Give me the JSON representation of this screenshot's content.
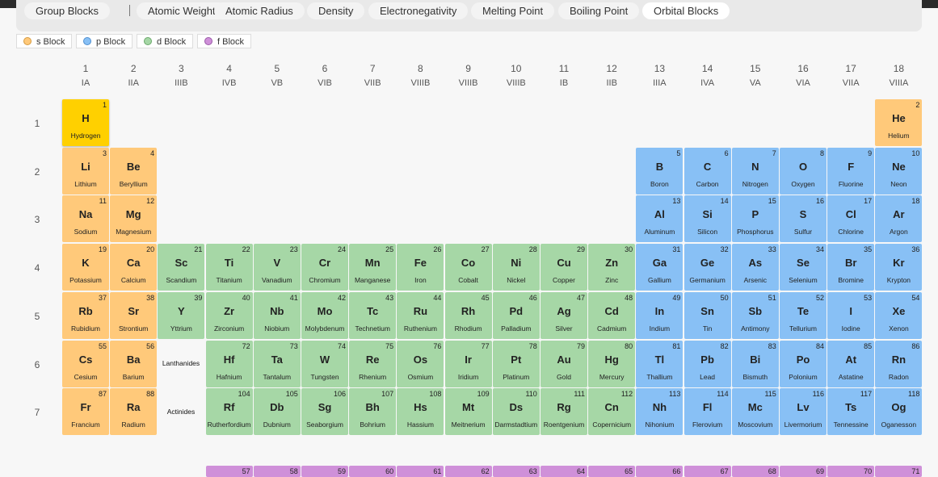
{
  "tabs": [
    {
      "label": "Group Blocks",
      "active": false
    },
    {
      "label": "Atomic Weight",
      "active": false
    },
    {
      "label": "Atomic Radius",
      "active": false
    },
    {
      "label": "Density",
      "active": false
    },
    {
      "label": "Electronegativity",
      "active": false
    },
    {
      "label": "Melting Point",
      "active": false
    },
    {
      "label": "Boiling Point",
      "active": false
    },
    {
      "label": "Orbital Blocks",
      "active": true
    }
  ],
  "legend": [
    {
      "label": "s Block",
      "color": "#ffc97a",
      "border": "#d59a3f"
    },
    {
      "label": "p Block",
      "color": "#88c0f5",
      "border": "#4f8fd0"
    },
    {
      "label": "d Block",
      "color": "#a6d7a6",
      "border": "#6aa86a"
    },
    {
      "label": "f Block",
      "color": "#cf90d9",
      "border": "#9a5aa8"
    }
  ],
  "groups": [
    {
      "num": "1",
      "rom": "IA"
    },
    {
      "num": "2",
      "rom": "IIA"
    },
    {
      "num": "3",
      "rom": "IIIB"
    },
    {
      "num": "4",
      "rom": "IVB"
    },
    {
      "num": "5",
      "rom": "VB"
    },
    {
      "num": "6",
      "rom": "VIB"
    },
    {
      "num": "7",
      "rom": "VIIB"
    },
    {
      "num": "8",
      "rom": "VIIIB"
    },
    {
      "num": "9",
      "rom": "VIIIB"
    },
    {
      "num": "10",
      "rom": "VIIIB"
    },
    {
      "num": "11",
      "rom": "IB"
    },
    {
      "num": "12",
      "rom": "IIB"
    },
    {
      "num": "13",
      "rom": "IIIA"
    },
    {
      "num": "14",
      "rom": "IVA"
    },
    {
      "num": "15",
      "rom": "VA"
    },
    {
      "num": "16",
      "rom": "VIA"
    },
    {
      "num": "17",
      "rom": "VIIA"
    },
    {
      "num": "18",
      "rom": "VIIIA"
    }
  ],
  "periods": [
    "1",
    "2",
    "3",
    "4",
    "5",
    "6",
    "7"
  ],
  "series_labels": {
    "lanthanides": "Lanthanides",
    "actinides": "Actinides"
  },
  "elements": [
    {
      "n": 1,
      "s": "H",
      "name": "Hydrogen",
      "g": 1,
      "p": 1,
      "b": "s",
      "hl": true
    },
    {
      "n": 2,
      "s": "He",
      "name": "Helium",
      "g": 18,
      "p": 1,
      "b": "s"
    },
    {
      "n": 3,
      "s": "Li",
      "name": "Lithium",
      "g": 1,
      "p": 2,
      "b": "s"
    },
    {
      "n": 4,
      "s": "Be",
      "name": "Beryllium",
      "g": 2,
      "p": 2,
      "b": "s"
    },
    {
      "n": 5,
      "s": "B",
      "name": "Boron",
      "g": 13,
      "p": 2,
      "b": "p"
    },
    {
      "n": 6,
      "s": "C",
      "name": "Carbon",
      "g": 14,
      "p": 2,
      "b": "p"
    },
    {
      "n": 7,
      "s": "N",
      "name": "Nitrogen",
      "g": 15,
      "p": 2,
      "b": "p"
    },
    {
      "n": 8,
      "s": "O",
      "name": "Oxygen",
      "g": 16,
      "p": 2,
      "b": "p"
    },
    {
      "n": 9,
      "s": "F",
      "name": "Fluorine",
      "g": 17,
      "p": 2,
      "b": "p"
    },
    {
      "n": 10,
      "s": "Ne",
      "name": "Neon",
      "g": 18,
      "p": 2,
      "b": "p"
    },
    {
      "n": 11,
      "s": "Na",
      "name": "Sodium",
      "g": 1,
      "p": 3,
      "b": "s"
    },
    {
      "n": 12,
      "s": "Mg",
      "name": "Magnesium",
      "g": 2,
      "p": 3,
      "b": "s"
    },
    {
      "n": 13,
      "s": "Al",
      "name": "Aluminum",
      "g": 13,
      "p": 3,
      "b": "p"
    },
    {
      "n": 14,
      "s": "Si",
      "name": "Silicon",
      "g": 14,
      "p": 3,
      "b": "p"
    },
    {
      "n": 15,
      "s": "P",
      "name": "Phosphorus",
      "g": 15,
      "p": 3,
      "b": "p"
    },
    {
      "n": 16,
      "s": "S",
      "name": "Sulfur",
      "g": 16,
      "p": 3,
      "b": "p"
    },
    {
      "n": 17,
      "s": "Cl",
      "name": "Chlorine",
      "g": 17,
      "p": 3,
      "b": "p"
    },
    {
      "n": 18,
      "s": "Ar",
      "name": "Argon",
      "g": 18,
      "p": 3,
      "b": "p"
    },
    {
      "n": 19,
      "s": "K",
      "name": "Potassium",
      "g": 1,
      "p": 4,
      "b": "s"
    },
    {
      "n": 20,
      "s": "Ca",
      "name": "Calcium",
      "g": 2,
      "p": 4,
      "b": "s"
    },
    {
      "n": 21,
      "s": "Sc",
      "name": "Scandium",
      "g": 3,
      "p": 4,
      "b": "d"
    },
    {
      "n": 22,
      "s": "Ti",
      "name": "Titanium",
      "g": 4,
      "p": 4,
      "b": "d"
    },
    {
      "n": 23,
      "s": "V",
      "name": "Vanadium",
      "g": 5,
      "p": 4,
      "b": "d"
    },
    {
      "n": 24,
      "s": "Cr",
      "name": "Chromium",
      "g": 6,
      "p": 4,
      "b": "d"
    },
    {
      "n": 25,
      "s": "Mn",
      "name": "Manganese",
      "g": 7,
      "p": 4,
      "b": "d"
    },
    {
      "n": 26,
      "s": "Fe",
      "name": "Iron",
      "g": 8,
      "p": 4,
      "b": "d"
    },
    {
      "n": 27,
      "s": "Co",
      "name": "Cobalt",
      "g": 9,
      "p": 4,
      "b": "d"
    },
    {
      "n": 28,
      "s": "Ni",
      "name": "Nickel",
      "g": 10,
      "p": 4,
      "b": "d"
    },
    {
      "n": 29,
      "s": "Cu",
      "name": "Copper",
      "g": 11,
      "p": 4,
      "b": "d"
    },
    {
      "n": 30,
      "s": "Zn",
      "name": "Zinc",
      "g": 12,
      "p": 4,
      "b": "d"
    },
    {
      "n": 31,
      "s": "Ga",
      "name": "Gallium",
      "g": 13,
      "p": 4,
      "b": "p"
    },
    {
      "n": 32,
      "s": "Ge",
      "name": "Germanium",
      "g": 14,
      "p": 4,
      "b": "p"
    },
    {
      "n": 33,
      "s": "As",
      "name": "Arsenic",
      "g": 15,
      "p": 4,
      "b": "p"
    },
    {
      "n": 34,
      "s": "Se",
      "name": "Selenium",
      "g": 16,
      "p": 4,
      "b": "p"
    },
    {
      "n": 35,
      "s": "Br",
      "name": "Bromine",
      "g": 17,
      "p": 4,
      "b": "p"
    },
    {
      "n": 36,
      "s": "Kr",
      "name": "Krypton",
      "g": 18,
      "p": 4,
      "b": "p"
    },
    {
      "n": 37,
      "s": "Rb",
      "name": "Rubidium",
      "g": 1,
      "p": 5,
      "b": "s"
    },
    {
      "n": 38,
      "s": "Sr",
      "name": "Strontium",
      "g": 2,
      "p": 5,
      "b": "s"
    },
    {
      "n": 39,
      "s": "Y",
      "name": "Yttrium",
      "g": 3,
      "p": 5,
      "b": "d"
    },
    {
      "n": 40,
      "s": "Zr",
      "name": "Zirconium",
      "g": 4,
      "p": 5,
      "b": "d"
    },
    {
      "n": 41,
      "s": "Nb",
      "name": "Niobium",
      "g": 5,
      "p": 5,
      "b": "d"
    },
    {
      "n": 42,
      "s": "Mo",
      "name": "Molybdenum",
      "g": 6,
      "p": 5,
      "b": "d"
    },
    {
      "n": 43,
      "s": "Tc",
      "name": "Technetium",
      "g": 7,
      "p": 5,
      "b": "d"
    },
    {
      "n": 44,
      "s": "Ru",
      "name": "Ruthenium",
      "g": 8,
      "p": 5,
      "b": "d"
    },
    {
      "n": 45,
      "s": "Rh",
      "name": "Rhodium",
      "g": 9,
      "p": 5,
      "b": "d"
    },
    {
      "n": 46,
      "s": "Pd",
      "name": "Palladium",
      "g": 10,
      "p": 5,
      "b": "d"
    },
    {
      "n": 47,
      "s": "Ag",
      "name": "Silver",
      "g": 11,
      "p": 5,
      "b": "d"
    },
    {
      "n": 48,
      "s": "Cd",
      "name": "Cadmium",
      "g": 12,
      "p": 5,
      "b": "d"
    },
    {
      "n": 49,
      "s": "In",
      "name": "Indium",
      "g": 13,
      "p": 5,
      "b": "p"
    },
    {
      "n": 50,
      "s": "Sn",
      "name": "Tin",
      "g": 14,
      "p": 5,
      "b": "p"
    },
    {
      "n": 51,
      "s": "Sb",
      "name": "Antimony",
      "g": 15,
      "p": 5,
      "b": "p"
    },
    {
      "n": 52,
      "s": "Te",
      "name": "Tellurium",
      "g": 16,
      "p": 5,
      "b": "p"
    },
    {
      "n": 53,
      "s": "I",
      "name": "Iodine",
      "g": 17,
      "p": 5,
      "b": "p"
    },
    {
      "n": 54,
      "s": "Xe",
      "name": "Xenon",
      "g": 18,
      "p": 5,
      "b": "p"
    },
    {
      "n": 55,
      "s": "Cs",
      "name": "Cesium",
      "g": 1,
      "p": 6,
      "b": "s"
    },
    {
      "n": 56,
      "s": "Ba",
      "name": "Barium",
      "g": 2,
      "p": 6,
      "b": "s"
    },
    {
      "n": 72,
      "s": "Hf",
      "name": "Hafnium",
      "g": 4,
      "p": 6,
      "b": "d"
    },
    {
      "n": 73,
      "s": "Ta",
      "name": "Tantalum",
      "g": 5,
      "p": 6,
      "b": "d"
    },
    {
      "n": 74,
      "s": "W",
      "name": "Tungsten",
      "g": 6,
      "p": 6,
      "b": "d"
    },
    {
      "n": 75,
      "s": "Re",
      "name": "Rhenium",
      "g": 7,
      "p": 6,
      "b": "d"
    },
    {
      "n": 76,
      "s": "Os",
      "name": "Osmium",
      "g": 8,
      "p": 6,
      "b": "d"
    },
    {
      "n": 77,
      "s": "Ir",
      "name": "Iridium",
      "g": 9,
      "p": 6,
      "b": "d"
    },
    {
      "n": 78,
      "s": "Pt",
      "name": "Platinum",
      "g": 10,
      "p": 6,
      "b": "d"
    },
    {
      "n": 79,
      "s": "Au",
      "name": "Gold",
      "g": 11,
      "p": 6,
      "b": "d"
    },
    {
      "n": 80,
      "s": "Hg",
      "name": "Mercury",
      "g": 12,
      "p": 6,
      "b": "d"
    },
    {
      "n": 81,
      "s": "Tl",
      "name": "Thallium",
      "g": 13,
      "p": 6,
      "b": "p"
    },
    {
      "n": 82,
      "s": "Pb",
      "name": "Lead",
      "g": 14,
      "p": 6,
      "b": "p"
    },
    {
      "n": 83,
      "s": "Bi",
      "name": "Bismuth",
      "g": 15,
      "p": 6,
      "b": "p"
    },
    {
      "n": 84,
      "s": "Po",
      "name": "Polonium",
      "g": 16,
      "p": 6,
      "b": "p"
    },
    {
      "n": 85,
      "s": "At",
      "name": "Astatine",
      "g": 17,
      "p": 6,
      "b": "p"
    },
    {
      "n": 86,
      "s": "Rn",
      "name": "Radon",
      "g": 18,
      "p": 6,
      "b": "p"
    },
    {
      "n": 87,
      "s": "Fr",
      "name": "Francium",
      "g": 1,
      "p": 7,
      "b": "s"
    },
    {
      "n": 88,
      "s": "Ra",
      "name": "Radium",
      "g": 2,
      "p": 7,
      "b": "s"
    },
    {
      "n": 104,
      "s": "Rf",
      "name": "Rutherfordium",
      "g": 4,
      "p": 7,
      "b": "d"
    },
    {
      "n": 105,
      "s": "Db",
      "name": "Dubnium",
      "g": 5,
      "p": 7,
      "b": "d"
    },
    {
      "n": 106,
      "s": "Sg",
      "name": "Seaborgium",
      "g": 6,
      "p": 7,
      "b": "d"
    },
    {
      "n": 107,
      "s": "Bh",
      "name": "Bohrium",
      "g": 7,
      "p": 7,
      "b": "d"
    },
    {
      "n": 108,
      "s": "Hs",
      "name": "Hassium",
      "g": 8,
      "p": 7,
      "b": "d"
    },
    {
      "n": 109,
      "s": "Mt",
      "name": "Meitnerium",
      "g": 9,
      "p": 7,
      "b": "d"
    },
    {
      "n": 110,
      "s": "Ds",
      "name": "Darmstadtium",
      "g": 10,
      "p": 7,
      "b": "d"
    },
    {
      "n": 111,
      "s": "Rg",
      "name": "Roentgenium",
      "g": 11,
      "p": 7,
      "b": "d"
    },
    {
      "n": 112,
      "s": "Cn",
      "name": "Copernicium",
      "g": 12,
      "p": 7,
      "b": "d"
    },
    {
      "n": 113,
      "s": "Nh",
      "name": "Nihonium",
      "g": 13,
      "p": 7,
      "b": "p"
    },
    {
      "n": 114,
      "s": "Fl",
      "name": "Flerovium",
      "g": 14,
      "p": 7,
      "b": "p"
    },
    {
      "n": 115,
      "s": "Mc",
      "name": "Moscovium",
      "g": 15,
      "p": 7,
      "b": "p"
    },
    {
      "n": 116,
      "s": "Lv",
      "name": "Livermorium",
      "g": 16,
      "p": 7,
      "b": "p"
    },
    {
      "n": 117,
      "s": "Ts",
      "name": "Tennessine",
      "g": 17,
      "p": 7,
      "b": "p"
    },
    {
      "n": 118,
      "s": "Og",
      "name": "Oganesson",
      "g": 18,
      "p": 7,
      "b": "p"
    }
  ],
  "f_row_partial": [
    {
      "n": 57,
      "g": 4
    },
    {
      "n": 58,
      "g": 5
    },
    {
      "n": 59,
      "g": 6
    },
    {
      "n": 60,
      "g": 7
    },
    {
      "n": 61,
      "g": 8
    },
    {
      "n": 62,
      "g": 9
    },
    {
      "n": 63,
      "g": 10
    },
    {
      "n": 64,
      "g": 11
    },
    {
      "n": 65,
      "g": 12
    },
    {
      "n": 66,
      "g": 13
    },
    {
      "n": 67,
      "g": 14
    },
    {
      "n": 68,
      "g": 15
    },
    {
      "n": 69,
      "g": 16
    },
    {
      "n": 70,
      "g": 17
    },
    {
      "n": 71,
      "g": 18
    }
  ]
}
